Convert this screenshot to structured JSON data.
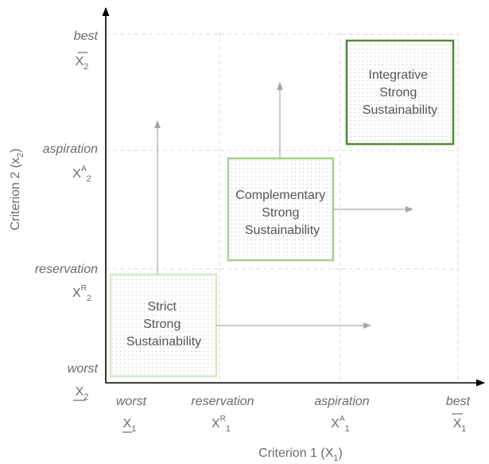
{
  "axes": {
    "x_title": "Criterion 1 (X",
    "x_title_sub": "1",
    "x_title_close": ")",
    "y_title": "Criterion 2 (x",
    "y_title_sub": "2",
    "y_title_close": ")"
  },
  "x_levels": [
    {
      "word": "worst",
      "symbol": "X",
      "sup": "",
      "sub": "1",
      "bar": "under"
    },
    {
      "word": "reservation",
      "symbol": "X",
      "sup": "R",
      "sub": "1",
      "bar": ""
    },
    {
      "word": "aspiration",
      "symbol": "X",
      "sup": "A",
      "sub": "1",
      "bar": ""
    },
    {
      "word": "best",
      "symbol": "X",
      "sup": "",
      "sub": "1",
      "bar": "over"
    }
  ],
  "y_levels": [
    {
      "word": "best",
      "symbol": "X",
      "sup": "",
      "sub": "2",
      "bar": "over"
    },
    {
      "word": "aspiration",
      "symbol": "X",
      "sup": "A",
      "sub": "2",
      "bar": ""
    },
    {
      "word": "reservation",
      "symbol": "X",
      "sup": "R",
      "sub": "2",
      "bar": ""
    },
    {
      "word": "worst",
      "symbol": "X",
      "sup": "",
      "sub": "2",
      "bar": "under"
    }
  ],
  "boxes": [
    {
      "lines": [
        "Strict",
        "Strong",
        "Sustainability"
      ],
      "border": "#d5e8cc"
    },
    {
      "lines": [
        "Complementary",
        "Strong",
        "Sustainability"
      ],
      "border": "#a6d18e"
    },
    {
      "lines": [
        "Integrative",
        "Strong",
        "Sustainability"
      ],
      "border": "#4f8a34"
    }
  ],
  "colors": {
    "axis": "#000000",
    "grid": "#d9d9d9",
    "arrow": "#a6a6a6",
    "text": "#6b6b6b",
    "dots": "#c8c8c8"
  }
}
